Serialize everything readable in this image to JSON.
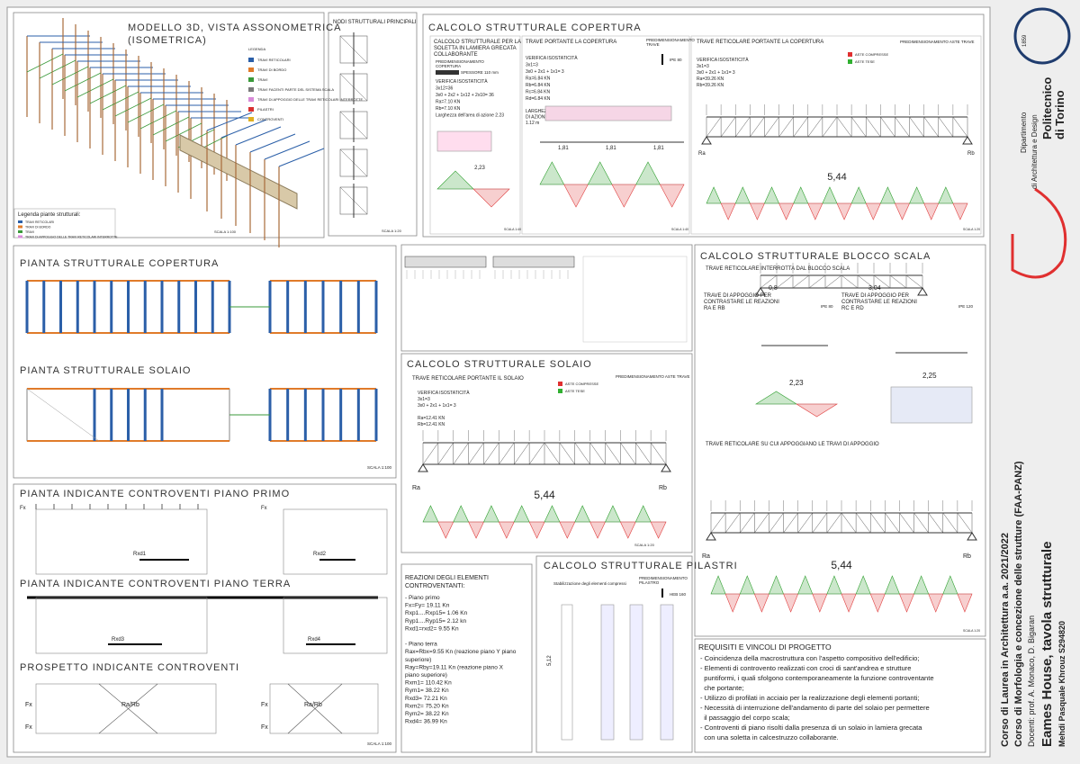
{
  "side": {
    "course": "Corso di Laurea in Architettura a.a. 2021/2022",
    "subject": "Corso di Morfologia e concezione delle strutture (FAA-PANZ)",
    "teachers": "Docenti: prof. A. Monaco, D. Bigaran",
    "project": "Eames House, tavola strutturale",
    "student": "Mehdi Pasquale Khrouz S294820"
  },
  "logo": {
    "year": "1859",
    "name1": "Politecnico",
    "name2": "di Torino",
    "dept1": "Dipartimento",
    "dept2": "di Architettura e Design"
  },
  "model": {
    "title1": "MODELLO 3D, VISTA ASSONOMETRICA",
    "title2": "(ISOMETRICA)",
    "legend_title": "LEGENDA",
    "legend": [
      {
        "label": "TRAVI RETICOLARI",
        "color": "#2b5fa8"
      },
      {
        "label": "TRAVI DI BORDO",
        "color": "#e07b2a"
      },
      {
        "label": "TRAVI",
        "color": "#3a9a3a"
      },
      {
        "label": "TRAVI FACENTI PARTE DEL SISTEMA SCALA",
        "color": "#7a7a7a"
      },
      {
        "label": "TRAVI DI APPOGGIO DELLE TRAVI RETICOLARI INTERROTTE",
        "color": "#d88ad8"
      },
      {
        "label": "PILASTRI",
        "color": "#d83030"
      },
      {
        "label": "CONTROVENTI",
        "color": "#e0b020"
      }
    ],
    "legend2_title": "Legenda piante strutturali:",
    "legend2": [
      {
        "label": "TRAVI RETICOLARI",
        "color": "#2b5fa8"
      },
      {
        "label": "TRAVI DI BORDO",
        "color": "#e07b2a"
      },
      {
        "label": "TRAVI",
        "color": "#3a9a3a"
      },
      {
        "label": "TRAVI DI APPOGGIO DELLE TRAVI RETICOLARI INTERROTTE",
        "color": "#d88ad8"
      }
    ],
    "scale": "SCALA 1:100"
  },
  "nodes": {
    "title": "NODI STRUTTURALI PRINCIPALI",
    "scale": "SCALA 1:20"
  },
  "roof": {
    "title": "CALCOLO STRUTTURALE COPERTURA",
    "slab": {
      "lines": [
        "CALCOLO STRUTTURALE PER LA",
        "SOLETTA IN LAMIERA GRECATA",
        "COLLABORANTE"
      ],
      "pre": [
        "PREDIMENSIONAMENTO",
        "COPERTURA"
      ],
      "thick": "SPESSORE 110 mm",
      "calc": [
        "VERIFICA ISOSTATICITÀ",
        "3x12=36",
        "3x0 + 2x2 + 1x12 + 2x10= 36",
        "Ra=7.10 KN",
        "Rb=7.10 KN",
        "Larghezza dell'area di azione 2.23"
      ],
      "span": "2,23",
      "scale": "SCALA 1:40"
    },
    "beam": {
      "title": "TRAVE PORTANTE LA COPERTURA",
      "pre": [
        "PREDIMENSIONAMENTO",
        "TRAVE"
      ],
      "profile": "IPE 80",
      "calc": [
        "VERIFICA ISOSTATICITÀ",
        "3x1=3",
        "3x0 + 2x1 + 1x1= 3",
        "Ra=6.84 KN",
        "Rb=6.84 KN",
        "Rc=6.84 KN",
        "Rd=6.84 KN"
      ],
      "area": [
        "LARGHEZZA DELL'AREA",
        "DI AZIONE DELLA TRAVE",
        "1.12 m"
      ],
      "span": "1,81",
      "scale": "SCALA 1:40"
    },
    "truss": {
      "title": "TRAVE RETICOLARE PORTANTE LA COPERTURA",
      "pre": "PREDIMENSIONAMENTO ASTE TRAVE",
      "comp": "ASTE COMPRESSE",
      "tens": "ASTE TESE",
      "calc": [
        "VERIFICA ISOSTATICITÀ",
        "3x1=3",
        "3x0 + 2x1 + 1x1= 3",
        "Ra=39.26 KN",
        "Rb=39.26 KN"
      ],
      "ra": "Ra",
      "rb": "Rb",
      "span": "5,44",
      "scale": "SCALA 1:20"
    }
  },
  "plans": {
    "roof": "PIANTA STRUTTURALE COPERTURA",
    "floor": "PIANTA STRUTTURALE SOLAIO",
    "scale": "SCALA 1:100"
  },
  "floor": {
    "title": "CALCOLO STRUTTURALE SOLAIO",
    "sub": "TRAVE RETICOLARE PORTANTE IL SOLAIO",
    "pre": "PREDIMENSIONAMENTO ASTE TRAVE",
    "comp": "ASTE COMPRESSE",
    "tens": "ASTE TESE",
    "calc": [
      "VERIFICA ISOSTATICITÀ",
      "3x1=3",
      "3x0 + 2x1 + 1x1= 3",
      "",
      "Ra=12.41 KN",
      "Rb=12.41 KN"
    ],
    "ra": "Ra",
    "rb": "Rb",
    "span": "5,44",
    "scale": "SCALA 1:20"
  },
  "stair": {
    "title": "CALCOLO STRUTTURALE BLOCCO SCALA",
    "sub1": "TRAVE RETICOLARE INTERROTTA DAL BLOCCO SCALA",
    "s1": "0,8",
    "s2": "3,04",
    "sub2": [
      "TRAVE DI APPOGGIO PER",
      "CONTRASTARE LE REAZIONI",
      "RA E RB"
    ],
    "p2": "IPE 80",
    "span2": "2,23",
    "sub3": [
      "TRAVE DI APPOGGIO PER",
      "CONTRASTARE LE REAZIONI",
      "RC E RD"
    ],
    "p3": "IPE 120",
    "span3": "2,25",
    "sub4": "TRAVE RETICOLARE SU CUI APPOGGIANO LE TRAVI DI APPOGGIO",
    "ra": "Ra",
    "rb": "Rb",
    "span4": "5,44",
    "scale": "SCALA 1:20"
  },
  "bracing": {
    "first": "PIANTA INDICANTE CONTROVENTI PIANO PRIMO",
    "ground": "PIANTA INDICANTE CONTROVENTI PIANO TERRA",
    "elev": "PROSPETTO INDICANTE CONTROVENTI",
    "fx": "Fx",
    "rxd1": "Rxd1",
    "rxd2": "Rxd2",
    "rxd3": "Rxd3",
    "rxd4": "Rxd4",
    "rarb": "Ra/Rb",
    "scale": "SCALA 1:100"
  },
  "reactions": {
    "title": [
      "REAZIONI DEGLI ELEMENTI",
      "CONTROVENTANTI:"
    ],
    "lines": [
      "- Piano primo",
      "Fx=Fy= 19.11 Kn",
      "Rxp1....Rxp15= 1.06 Kn",
      "Ryp1....Ryp15= 2.12 kn",
      "Rxd1=rxd2= 9.55 Kn",
      "",
      "- Piano terra",
      "Rax=Rbx=9.55 Kn (reazione piano Y piano",
      "superiore)",
      "Ray=Rby=19.11 Kn (reazione piano X",
      "piano superiore)",
      "Rxm1= 110.42 Kn",
      "Rym1= 38.22 Kn",
      "Rxd3= 72.21 Kn",
      "Rxm2= 75.20 Kn",
      "Rym2= 38.22 Kn",
      "Rxd4= 36.99 Kn"
    ]
  },
  "pillars": {
    "title": "CALCOLO STRUTTURALE PILASTRI",
    "pre": [
      "PREDIMENSIONAMENTO",
      "PILASTRO"
    ],
    "profile": "HEB 160",
    "note": "Stabilizzazione degli elementi compressi",
    "height": "5,12"
  },
  "requirements": {
    "title": "REQUISITI E VINCOLI DI PROGETTO",
    "items": [
      "- Coincidenza della macrostruttura con l'aspetto compositivo dell'edificio;",
      "- Elementi di controvento realizzati con croci di sant'andrea e strutture",
      "  puntiformi, i quali sfolgono contemporaneamente la funzione controventante",
      "  che portante;",
      "- Utilizzo di profilati in acciaio per la realizzazione degli elementi portanti;",
      "- Necessità di interruzione dell'andamento di parte del solaio per permettere",
      "  il passaggio del corpo scala;",
      "- Controventi di piano risolti dalla presenza di un solaio in lamiera grecata",
      "  con una soletta in calcestruzzo collaborante."
    ]
  }
}
